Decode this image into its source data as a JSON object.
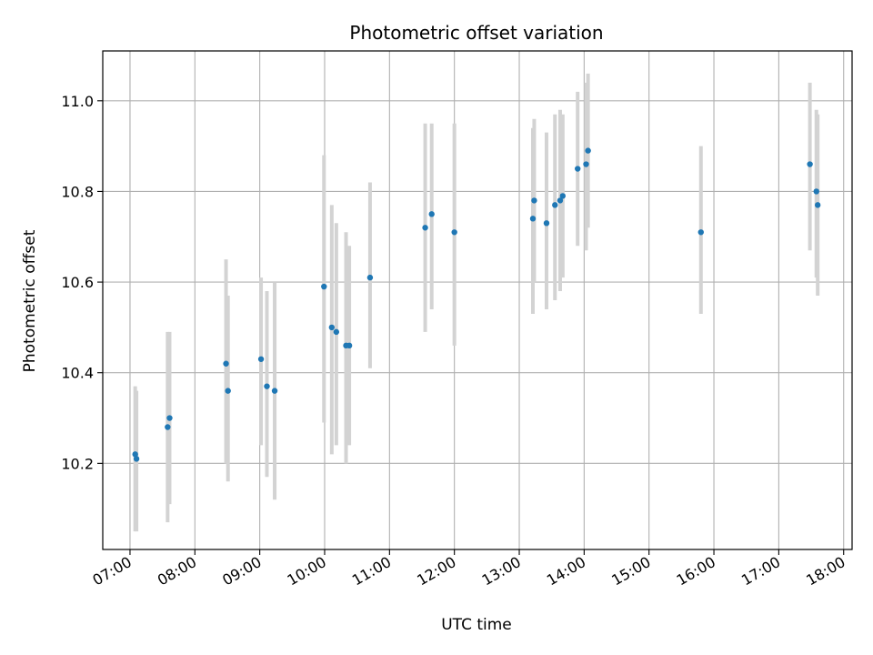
{
  "chart_data": {
    "type": "scatter",
    "title": "Photometric offset variation",
    "xlabel": "UTC time",
    "ylabel": "Photometric offset",
    "grid": true,
    "xlim": [
      6.58,
      18.13
    ],
    "ylim": [
      10.01,
      11.11
    ],
    "x_ticks": [
      {
        "value": 7,
        "label": "07:00"
      },
      {
        "value": 8,
        "label": "08:00"
      },
      {
        "value": 9,
        "label": "09:00"
      },
      {
        "value": 10,
        "label": "10:00"
      },
      {
        "value": 11,
        "label": "11:00"
      },
      {
        "value": 12,
        "label": "12:00"
      },
      {
        "value": 13,
        "label": "13:00"
      },
      {
        "value": 14,
        "label": "14:00"
      },
      {
        "value": 15,
        "label": "15:00"
      },
      {
        "value": 16,
        "label": "16:00"
      },
      {
        "value": 17,
        "label": "17:00"
      },
      {
        "value": 18,
        "label": "18:00"
      }
    ],
    "y_ticks": [
      {
        "value": 10.2,
        "label": "10.2"
      },
      {
        "value": 10.4,
        "label": "10.4"
      },
      {
        "value": 10.6,
        "label": "10.6"
      },
      {
        "value": 10.8,
        "label": "10.8"
      },
      {
        "value": 11.0,
        "label": "11.0"
      }
    ],
    "point_color": "#1f77b4",
    "errorbar_color": "#d3d3d3",
    "grid_color": "#b0b0b0",
    "points": [
      {
        "x": 7.08,
        "y": 10.22,
        "low": 10.05,
        "high": 10.37
      },
      {
        "x": 7.1,
        "y": 10.21,
        "low": 10.05,
        "high": 10.36
      },
      {
        "x": 7.58,
        "y": 10.28,
        "low": 10.07,
        "high": 10.49
      },
      {
        "x": 7.61,
        "y": 10.3,
        "low": 10.11,
        "high": 10.49
      },
      {
        "x": 8.48,
        "y": 10.42,
        "low": 10.2,
        "high": 10.65
      },
      {
        "x": 8.51,
        "y": 10.36,
        "low": 10.16,
        "high": 10.57
      },
      {
        "x": 9.02,
        "y": 10.43,
        "low": 10.24,
        "high": 10.61
      },
      {
        "x": 9.11,
        "y": 10.37,
        "low": 10.17,
        "high": 10.58
      },
      {
        "x": 9.23,
        "y": 10.36,
        "low": 10.12,
        "high": 10.6
      },
      {
        "x": 9.99,
        "y": 10.59,
        "low": 10.29,
        "high": 10.88
      },
      {
        "x": 10.11,
        "y": 10.5,
        "low": 10.22,
        "high": 10.77
      },
      {
        "x": 10.18,
        "y": 10.49,
        "low": 10.24,
        "high": 10.73
      },
      {
        "x": 10.33,
        "y": 10.46,
        "low": 10.2,
        "high": 10.71
      },
      {
        "x": 10.38,
        "y": 10.46,
        "low": 10.24,
        "high": 10.68
      },
      {
        "x": 10.7,
        "y": 10.61,
        "low": 10.41,
        "high": 10.82
      },
      {
        "x": 11.55,
        "y": 10.72,
        "low": 10.49,
        "high": 10.95
      },
      {
        "x": 11.65,
        "y": 10.75,
        "low": 10.54,
        "high": 10.95
      },
      {
        "x": 12.0,
        "y": 10.71,
        "low": 10.46,
        "high": 10.95
      },
      {
        "x": 13.21,
        "y": 10.74,
        "low": 10.53,
        "high": 10.94
      },
      {
        "x": 13.23,
        "y": 10.78,
        "low": 10.6,
        "high": 10.96
      },
      {
        "x": 13.42,
        "y": 10.73,
        "low": 10.54,
        "high": 10.93
      },
      {
        "x": 13.55,
        "y": 10.77,
        "low": 10.56,
        "high": 10.97
      },
      {
        "x": 13.63,
        "y": 10.78,
        "low": 10.58,
        "high": 10.98
      },
      {
        "x": 13.67,
        "y": 10.79,
        "low": 10.61,
        "high": 10.97
      },
      {
        "x": 13.9,
        "y": 10.85,
        "low": 10.68,
        "high": 11.02
      },
      {
        "x": 14.03,
        "y": 10.86,
        "low": 10.67,
        "high": 11.04
      },
      {
        "x": 14.06,
        "y": 10.89,
        "low": 10.72,
        "high": 11.06
      },
      {
        "x": 15.8,
        "y": 10.71,
        "low": 10.53,
        "high": 10.9
      },
      {
        "x": 17.48,
        "y": 10.86,
        "low": 10.67,
        "high": 11.04
      },
      {
        "x": 17.58,
        "y": 10.8,
        "low": 10.61,
        "high": 10.98
      },
      {
        "x": 17.6,
        "y": 10.77,
        "low": 10.57,
        "high": 10.97
      }
    ]
  }
}
